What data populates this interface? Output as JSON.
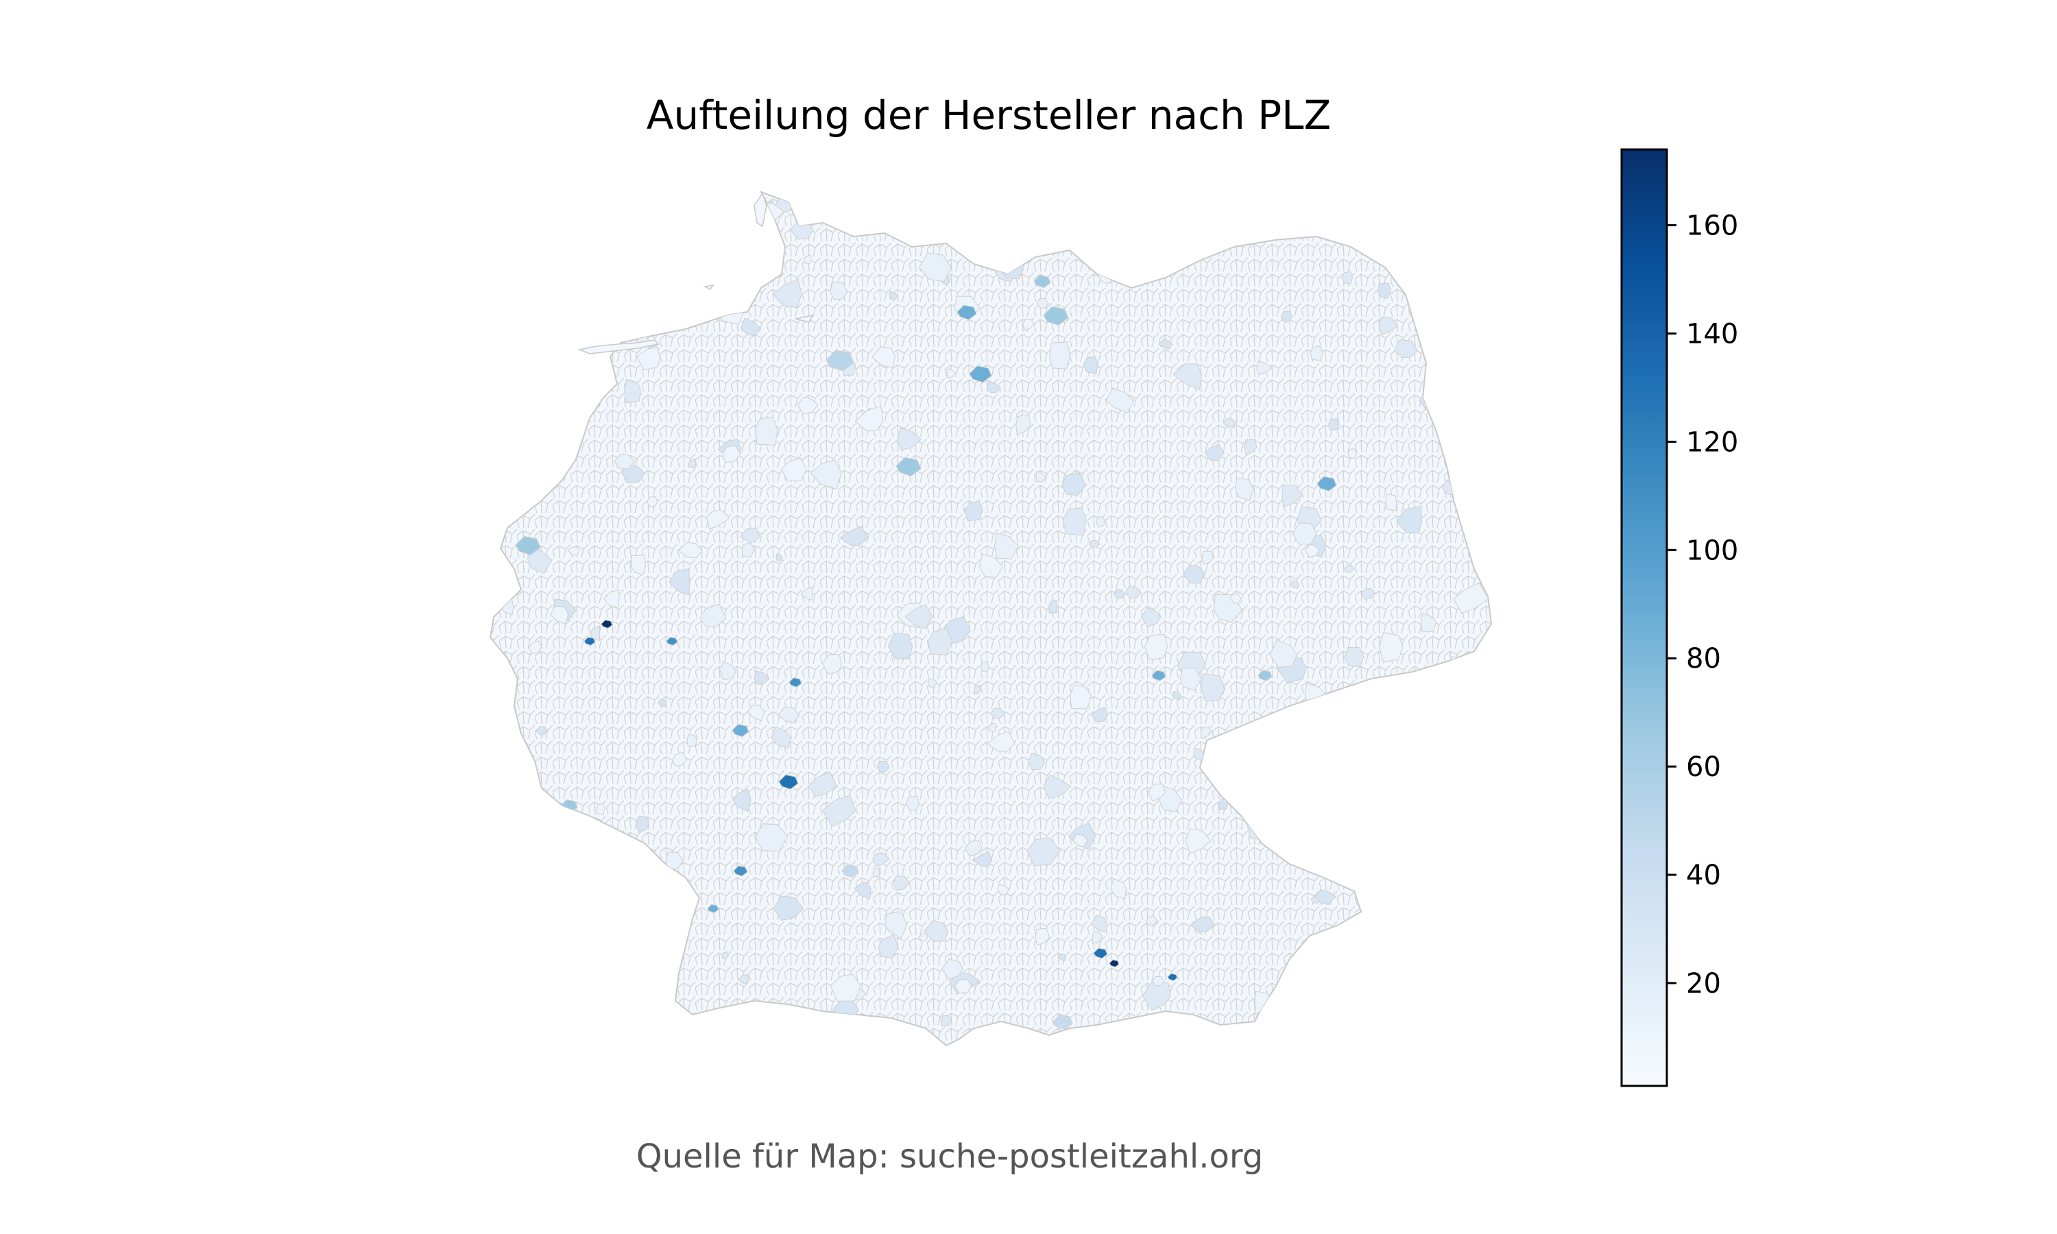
{
  "title": "Aufteilung der Hersteller nach PLZ",
  "source_note": "Quelle für Map: suche-postleitzahl.org",
  "map": {
    "region": "Germany",
    "unit": "postal-code areas (PLZ)",
    "fill_color_default": "#f1f6fc",
    "border_color": "#cfcfcf"
  },
  "chart_data": {
    "type": "heatmap",
    "subtype": "choropleth",
    "title": "Aufteilung der Hersteller nach Hersteller PLZ",
    "colormap": "Blues",
    "colorbar": {
      "min": 1,
      "max": 174,
      "ticks": [
        20,
        40,
        60,
        80,
        100,
        120,
        140,
        160
      ],
      "tick_labels": [
        "20",
        "40",
        "60",
        "80",
        "100",
        "120",
        "140",
        "160"
      ]
    },
    "colors": {
      "low": "#f7fbff",
      "mid": "#6baed6",
      "high": "#08306b"
    }
  }
}
